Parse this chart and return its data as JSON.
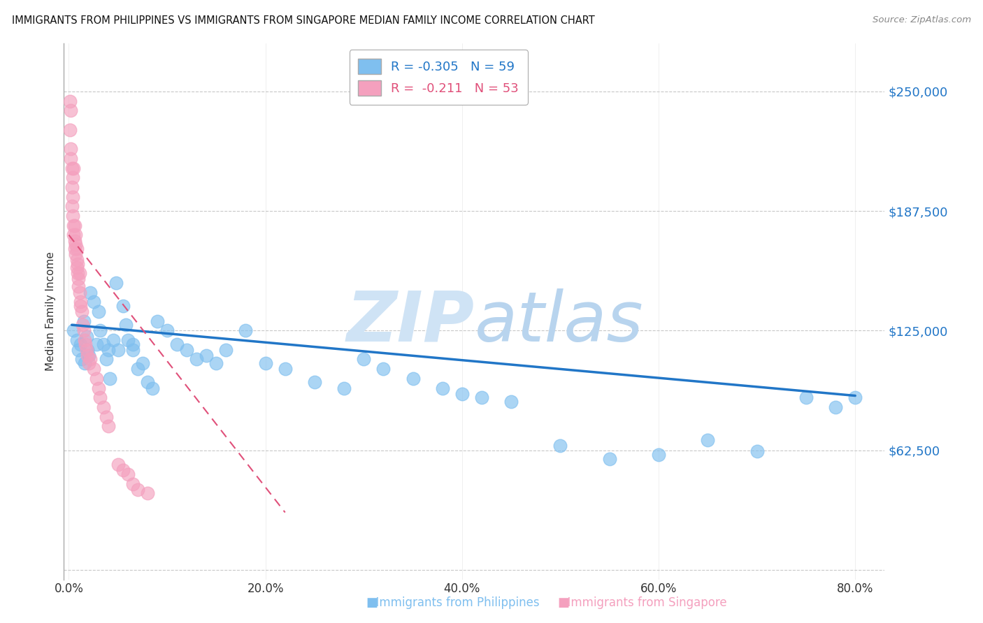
{
  "title": "IMMIGRANTS FROM PHILIPPINES VS IMMIGRANTS FROM SINGAPORE MEDIAN FAMILY INCOME CORRELATION CHART",
  "source": "Source: ZipAtlas.com",
  "ylabel": "Median Family Income",
  "xlabel_ticks": [
    "0.0%",
    "20.0%",
    "40.0%",
    "60.0%",
    "80.0%"
  ],
  "xlabel_vals": [
    0.0,
    0.2,
    0.4,
    0.6,
    0.8
  ],
  "ytick_vals": [
    0,
    62500,
    125000,
    187500,
    250000
  ],
  "ytick_labels": [
    "",
    "$62,500",
    "$125,000",
    "$187,500",
    "$250,000"
  ],
  "ylim": [
    -5000,
    275000
  ],
  "xlim": [
    -0.005,
    0.83
  ],
  "blue_color": "#7fbfef",
  "pink_color": "#f4a0be",
  "blue_line_color": "#2176c7",
  "pink_line_color": "#e0507a",
  "grid_color": "#c8c8c8",
  "watermark_color": "#cfe3f5",
  "legend_r_blue": "-0.305",
  "legend_n_blue": "59",
  "legend_r_pink": "-0.211",
  "legend_n_pink": "53",
  "philippines_x": [
    0.005,
    0.008,
    0.01,
    0.012,
    0.013,
    0.015,
    0.016,
    0.018,
    0.019,
    0.02,
    0.022,
    0.025,
    0.028,
    0.03,
    0.032,
    0.035,
    0.038,
    0.04,
    0.042,
    0.045,
    0.048,
    0.05,
    0.055,
    0.058,
    0.06,
    0.065,
    0.065,
    0.07,
    0.075,
    0.08,
    0.085,
    0.09,
    0.1,
    0.11,
    0.12,
    0.13,
    0.14,
    0.15,
    0.16,
    0.18,
    0.2,
    0.22,
    0.25,
    0.28,
    0.3,
    0.32,
    0.35,
    0.38,
    0.4,
    0.42,
    0.45,
    0.5,
    0.55,
    0.6,
    0.65,
    0.7,
    0.75,
    0.78,
    0.8
  ],
  "philippines_y": [
    125000,
    120000,
    115000,
    118000,
    110000,
    130000,
    108000,
    122000,
    115000,
    112000,
    145000,
    140000,
    118000,
    135000,
    125000,
    118000,
    110000,
    115000,
    100000,
    120000,
    150000,
    115000,
    138000,
    128000,
    120000,
    118000,
    115000,
    105000,
    108000,
    98000,
    95000,
    130000,
    125000,
    118000,
    115000,
    110000,
    112000,
    108000,
    115000,
    125000,
    108000,
    105000,
    98000,
    95000,
    110000,
    105000,
    100000,
    95000,
    92000,
    90000,
    88000,
    65000,
    58000,
    60000,
    68000,
    62000,
    90000,
    85000,
    90000
  ],
  "singapore_x": [
    0.001,
    0.001,
    0.002,
    0.002,
    0.002,
    0.003,
    0.003,
    0.003,
    0.004,
    0.004,
    0.004,
    0.005,
    0.005,
    0.005,
    0.006,
    0.006,
    0.006,
    0.007,
    0.007,
    0.007,
    0.008,
    0.008,
    0.008,
    0.009,
    0.009,
    0.01,
    0.01,
    0.011,
    0.011,
    0.012,
    0.012,
    0.013,
    0.014,
    0.015,
    0.016,
    0.017,
    0.018,
    0.019,
    0.02,
    0.022,
    0.025,
    0.028,
    0.03,
    0.032,
    0.035,
    0.038,
    0.04,
    0.05,
    0.055,
    0.06,
    0.065,
    0.07,
    0.08
  ],
  "singapore_y": [
    245000,
    230000,
    220000,
    240000,
    215000,
    200000,
    210000,
    190000,
    195000,
    185000,
    205000,
    180000,
    175000,
    210000,
    172000,
    168000,
    180000,
    170000,
    165000,
    175000,
    162000,
    158000,
    168000,
    155000,
    160000,
    152000,
    148000,
    145000,
    155000,
    140000,
    138000,
    135000,
    128000,
    125000,
    120000,
    118000,
    115000,
    112000,
    108000,
    110000,
    105000,
    100000,
    95000,
    90000,
    85000,
    80000,
    75000,
    55000,
    52000,
    50000,
    45000,
    42000,
    40000
  ],
  "blue_trend_x": [
    0.003,
    0.8
  ],
  "blue_trend_y": [
    128000,
    91000
  ],
  "pink_trend_x": [
    0.0,
    0.22
  ],
  "pink_trend_y": [
    175000,
    30000
  ]
}
